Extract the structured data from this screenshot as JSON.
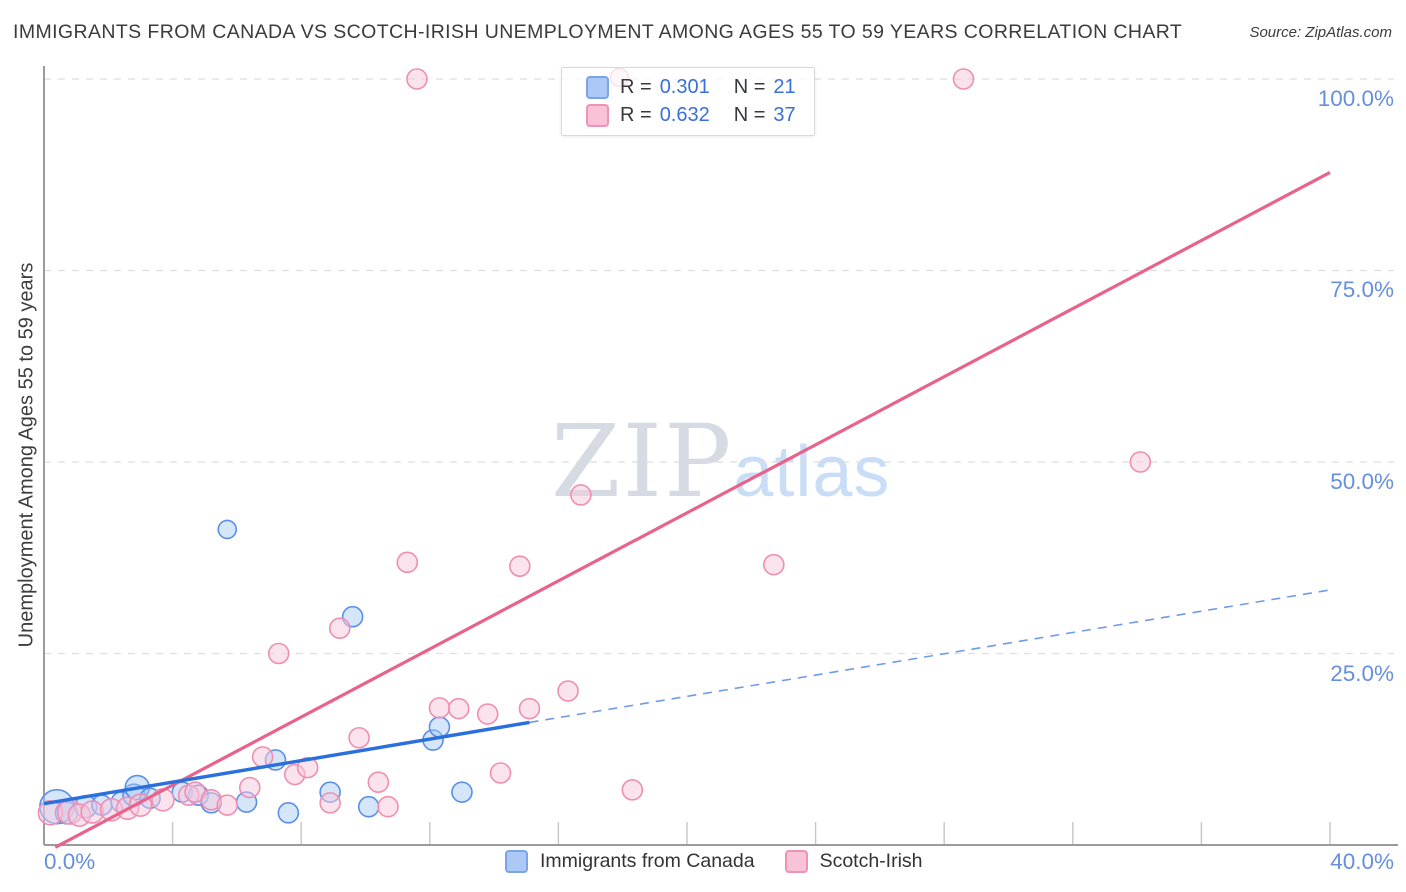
{
  "header": {
    "title": "IMMIGRANTS FROM CANADA VS SCOTCH-IRISH UNEMPLOYMENT AMONG AGES 55 TO 59 YEARS CORRELATION CHART",
    "source": "Source: ZipAtlas.com"
  },
  "watermark": {
    "zip": "ZIP",
    "atlas": "atlas"
  },
  "y_axis": {
    "label": "Unemployment Among Ages 55 to 59 years",
    "ticks": [
      "100.0%",
      "75.0%",
      "50.0%",
      "25.0%"
    ]
  },
  "x_axis": {
    "min_label": "0.0%",
    "max_label": "40.0%"
  },
  "legend_box": {
    "rows": [
      {
        "series": "Immigrants from Canada",
        "r_label": "R =",
        "r_value": "0.301",
        "n_label": "N =",
        "n_value": "21"
      },
      {
        "series": "Scotch-Irish",
        "r_label": "R =",
        "r_value": "0.632",
        "n_label": "N =",
        "n_value": "37"
      }
    ]
  },
  "bottom_legend": {
    "items": [
      {
        "label": "Immigrants from Canada",
        "fill": "#abc9f4",
        "stroke": "#7aa3e8"
      },
      {
        "label": "Scotch-Irish",
        "fill": "#f9c2d8",
        "stroke": "#ef93b4"
      }
    ]
  },
  "chart_data": {
    "type": "scatter",
    "title": "Immigrants from Canada vs Scotch-Irish Unemployment Among Ages 55 to 59 years",
    "xlabel": "Immigrants from Canada (%)",
    "ylabel": "Unemployment Among Ages 55 to 59 years",
    "xlim": [
      0,
      40
    ],
    "ylim": [
      0,
      100
    ],
    "x_tick_interval_pct": 4,
    "grid_y_pct": [
      25,
      50,
      75,
      100
    ],
    "grid_on": true,
    "legend_position": "bottom",
    "colors": {
      "blue_fill": "#a4c7f4",
      "blue_stroke": "#5c8fe8",
      "pink_fill": "#f8c8dc",
      "pink_stroke": "#ee8fb2",
      "blue_line": "#2a6fdb",
      "pink_line": "#e8638c",
      "grid": "#dedede",
      "axis": "#9b9b9b",
      "tick_label_blue": "#6690db"
    },
    "series": [
      {
        "name": "Immigrants from Canada",
        "R": 0.301,
        "N": 21,
        "fill": "#a4c7f4",
        "fill_opacity": 0.45,
        "stroke": "#5c8fe8",
        "point_name": "canada-point",
        "points": [
          [
            0.4,
            5.0,
            17
          ],
          [
            0.7,
            4.2,
            11
          ],
          [
            1.3,
            5.0,
            11
          ],
          [
            1.8,
            5.2,
            10
          ],
          [
            2.4,
            5.6,
            10
          ],
          [
            2.8,
            6.5,
            11
          ],
          [
            2.9,
            7.5,
            12
          ],
          [
            3.3,
            6.1,
            10
          ],
          [
            4.3,
            6.9,
            10
          ],
          [
            4.8,
            6.5,
            10
          ],
          [
            5.2,
            5.5,
            10
          ],
          [
            5.7,
            41.2,
            9
          ],
          [
            6.3,
            5.6,
            10
          ],
          [
            7.2,
            11.1,
            10
          ],
          [
            7.6,
            4.2,
            10
          ],
          [
            8.9,
            6.9,
            10
          ],
          [
            9.6,
            29.8,
            10
          ],
          [
            10.1,
            5.0,
            10
          ],
          [
            12.1,
            13.7,
            10
          ],
          [
            12.3,
            15.4,
            10
          ],
          [
            13.0,
            6.9,
            10
          ]
        ]
      },
      {
        "name": "Scotch-Irish",
        "R": 0.632,
        "N": 37,
        "fill": "#f8c8dc",
        "fill_opacity": 0.5,
        "stroke": "#ee8fb2",
        "point_name": "scotch-irish-point",
        "points": [
          [
            0.2,
            4.2,
            12
          ],
          [
            0.8,
            4.3,
            12
          ],
          [
            1.1,
            3.9,
            11
          ],
          [
            1.5,
            4.3,
            11
          ],
          [
            2.1,
            4.6,
            11
          ],
          [
            2.6,
            4.8,
            11
          ],
          [
            3.0,
            5.2,
            11
          ],
          [
            3.7,
            5.9,
            11
          ],
          [
            4.5,
            6.5,
            10
          ],
          [
            4.7,
            6.9,
            10
          ],
          [
            5.2,
            5.9,
            10
          ],
          [
            5.7,
            5.2,
            10
          ],
          [
            6.4,
            7.5,
            10
          ],
          [
            6.8,
            11.5,
            10
          ],
          [
            7.3,
            25.0,
            10
          ],
          [
            7.8,
            9.2,
            10
          ],
          [
            8.2,
            10.1,
            10
          ],
          [
            8.9,
            5.5,
            10
          ],
          [
            9.2,
            28.3,
            10
          ],
          [
            9.8,
            14.0,
            10
          ],
          [
            10.4,
            8.2,
            10
          ],
          [
            10.7,
            5.0,
            10
          ],
          [
            11.3,
            36.9,
            10
          ],
          [
            11.6,
            100.0,
            10
          ],
          [
            12.3,
            17.9,
            10
          ],
          [
            12.9,
            17.8,
            10
          ],
          [
            13.8,
            17.1,
            10
          ],
          [
            14.2,
            9.4,
            10
          ],
          [
            14.8,
            36.4,
            10
          ],
          [
            15.1,
            17.8,
            10
          ],
          [
            16.3,
            20.1,
            10
          ],
          [
            16.7,
            45.7,
            10
          ],
          [
            17.9,
            100.2,
            9
          ],
          [
            18.3,
            7.2,
            10
          ],
          [
            22.7,
            36.6,
            10
          ],
          [
            28.6,
            100.0,
            10
          ],
          [
            34.1,
            50.0,
            10
          ]
        ]
      }
    ],
    "trend_lines": [
      {
        "name": "scotch-irish-trend-line",
        "x1": 0.35,
        "y1": -0.3,
        "x2": 40.0,
        "y2": 87.8,
        "color": "#e8638c",
        "width": 3.2,
        "dash": ""
      },
      {
        "name": "canada-trend-line-dashed",
        "x1": 15.1,
        "y1": 16.0,
        "x2": 40.0,
        "y2": 33.3,
        "color": "#6f9be8",
        "width": 1.6,
        "dash": "9 7"
      },
      {
        "name": "canada-trend-line",
        "x1": 0.0,
        "y1": 5.4,
        "x2": 15.1,
        "y2": 16.0,
        "color": "#2a6fdb",
        "width": 3.4,
        "dash": ""
      }
    ]
  }
}
